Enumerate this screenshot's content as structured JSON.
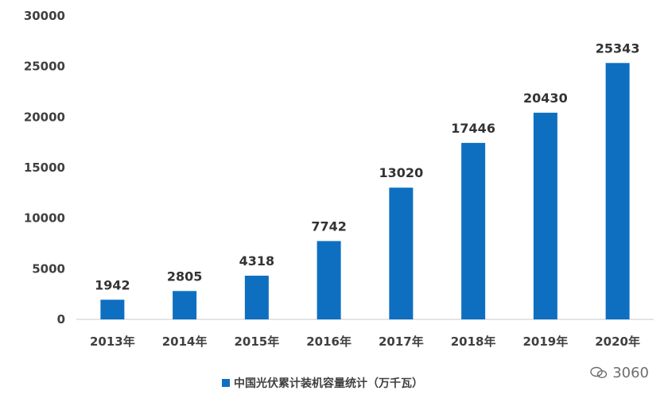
{
  "chart_data": {
    "type": "bar",
    "categories": [
      "2013年",
      "2014年",
      "2015年",
      "2016年",
      "2017年",
      "2018年",
      "2019年",
      "2020年"
    ],
    "series": [
      {
        "name": "中国光伏累计装机容量统计（万千瓦）",
        "values": [
          1942,
          2805,
          4318,
          7742,
          13020,
          17446,
          20430,
          25343
        ]
      }
    ],
    "y_ticks": [
      "0",
      "5000",
      "10000",
      "15000",
      "20000",
      "25000",
      "30000"
    ],
    "ylim": [
      0,
      30000
    ],
    "grid": false,
    "legend_position": "bottom",
    "bar_color": "#0e6fc1",
    "data_labels": [
      "1942",
      "2805",
      "4318",
      "7742",
      "13020",
      "17446",
      "20430",
      "25343"
    ]
  },
  "watermark": {
    "text": "3060",
    "icon": "wechat-icon"
  }
}
